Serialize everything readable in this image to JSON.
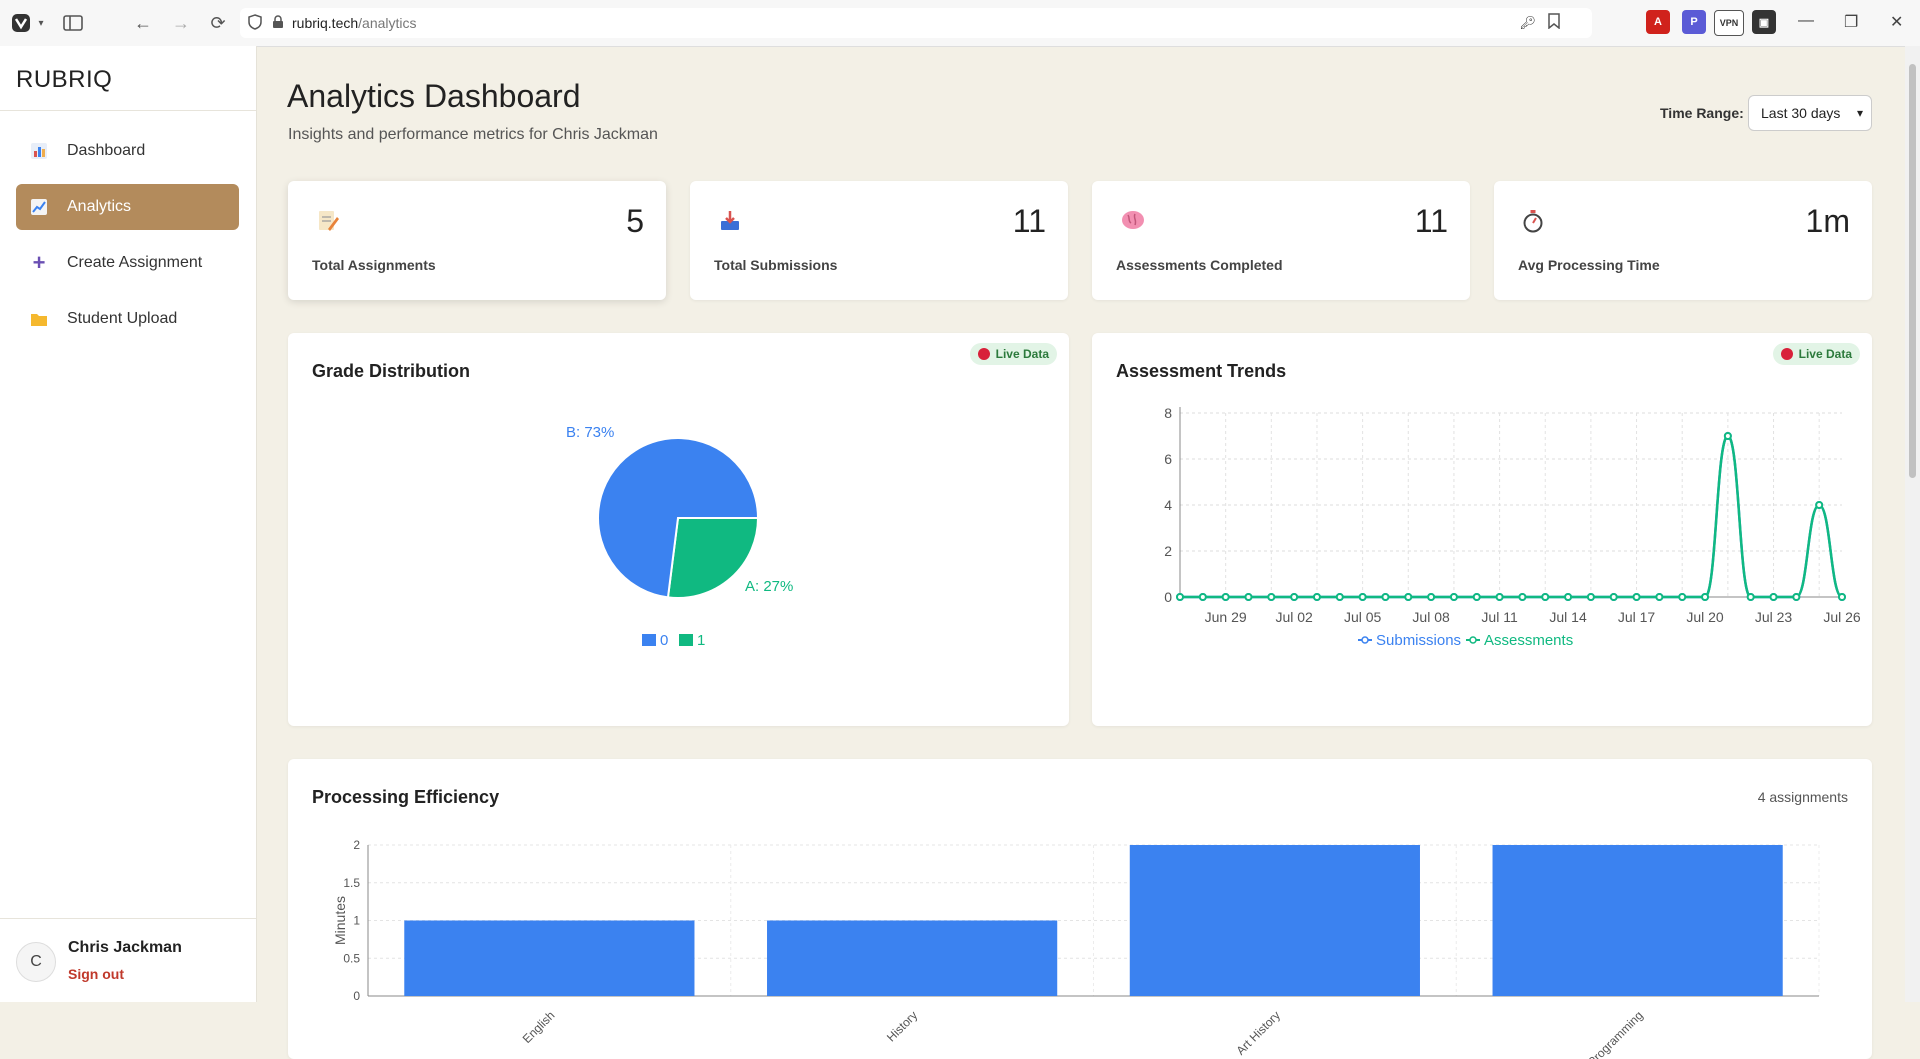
{
  "browser": {
    "url_host": "rubriq.tech",
    "url_path": "/analytics",
    "vpn_label": "VPN"
  },
  "sidebar": {
    "brand": "RUBRIQ",
    "items": [
      {
        "label": "Dashboard",
        "icon": "bar-chart-icon"
      },
      {
        "label": "Analytics",
        "icon": "trend-chart-icon"
      },
      {
        "label": "Create Assignment",
        "icon": "plus-icon"
      },
      {
        "label": "Student Upload",
        "icon": "folder-icon"
      }
    ],
    "user": {
      "initial": "C",
      "name": "Chris Jackman",
      "signout": "Sign out"
    }
  },
  "header": {
    "title": "Analytics Dashboard",
    "subtitle": "Insights and performance metrics for Chris Jackman",
    "time_range_label": "Time Range:",
    "time_range_value": "Last 30 days"
  },
  "stats": [
    {
      "label": "Total Assignments",
      "value": "5",
      "icon": "memo-icon"
    },
    {
      "label": "Total Submissions",
      "value": "11",
      "icon": "inbox-tray-icon"
    },
    {
      "label": "Assessments Completed",
      "value": "11",
      "icon": "brain-icon"
    },
    {
      "label": "Avg Processing Time",
      "value": "1m",
      "icon": "stopwatch-icon"
    }
  ],
  "grade_card": {
    "title": "Grade Distribution",
    "live": "Live Data"
  },
  "trend_card": {
    "title": "Assessment Trends",
    "live": "Live Data"
  },
  "efficiency_card": {
    "title": "Processing Efficiency",
    "count": "4 assignments"
  },
  "colors": {
    "blue": "#3b82f0",
    "green": "#10b981",
    "accent": "#b38b5c"
  },
  "chart_data": [
    {
      "type": "pie",
      "title": "Grade Distribution",
      "slices": [
        {
          "label": "B: 73%",
          "value": 73,
          "color": "#3b82f0"
        },
        {
          "label": "A: 27%",
          "value": 27,
          "color": "#10b981"
        }
      ],
      "legend": [
        "0",
        "1"
      ]
    },
    {
      "type": "line",
      "title": "Assessment Trends",
      "x": [
        "Jun 27",
        "Jun 28",
        "Jun 29",
        "Jun 30",
        "Jul 01",
        "Jul 02",
        "Jul 03",
        "Jul 04",
        "Jul 05",
        "Jul 06",
        "Jul 07",
        "Jul 08",
        "Jul 09",
        "Jul 10",
        "Jul 11",
        "Jul 12",
        "Jul 13",
        "Jul 14",
        "Jul 15",
        "Jul 16",
        "Jul 17",
        "Jul 18",
        "Jul 19",
        "Jul 20",
        "Jul 21",
        "Jul 22",
        "Jul 23",
        "Jul 24",
        "Jul 25",
        "Jul 26"
      ],
      "x_tick_labels": [
        "Jun 29",
        "Jul 02",
        "Jul 05",
        "Jul 08",
        "Jul 11",
        "Jul 14",
        "Jul 17",
        "Jul 20",
        "Jul 23",
        "Jul 26"
      ],
      "series": [
        {
          "name": "Submissions",
          "color": "#3b82f0",
          "values": [
            0,
            0,
            0,
            0,
            0,
            0,
            0,
            0,
            0,
            0,
            0,
            0,
            0,
            0,
            0,
            0,
            0,
            0,
            0,
            0,
            0,
            0,
            0,
            0,
            7,
            0,
            0,
            0,
            4,
            0
          ]
        },
        {
          "name": "Assessments",
          "color": "#10b981",
          "values": [
            0,
            0,
            0,
            0,
            0,
            0,
            0,
            0,
            0,
            0,
            0,
            0,
            0,
            0,
            0,
            0,
            0,
            0,
            0,
            0,
            0,
            0,
            0,
            0,
            7,
            0,
            0,
            0,
            4,
            0
          ]
        }
      ],
      "y_ticks": [
        "0",
        "2",
        "4",
        "6",
        "8"
      ],
      "ylim": [
        0,
        8
      ]
    },
    {
      "type": "bar",
      "title": "Processing Efficiency",
      "categories": [
        "English",
        "History",
        "Art History",
        "Programming"
      ],
      "values": [
        1,
        1,
        2,
        2
      ],
      "ylabel": "Minutes",
      "y_ticks": [
        "0",
        "0.5",
        "1",
        "1.5",
        "2"
      ],
      "ylim": [
        0,
        2
      ]
    }
  ]
}
